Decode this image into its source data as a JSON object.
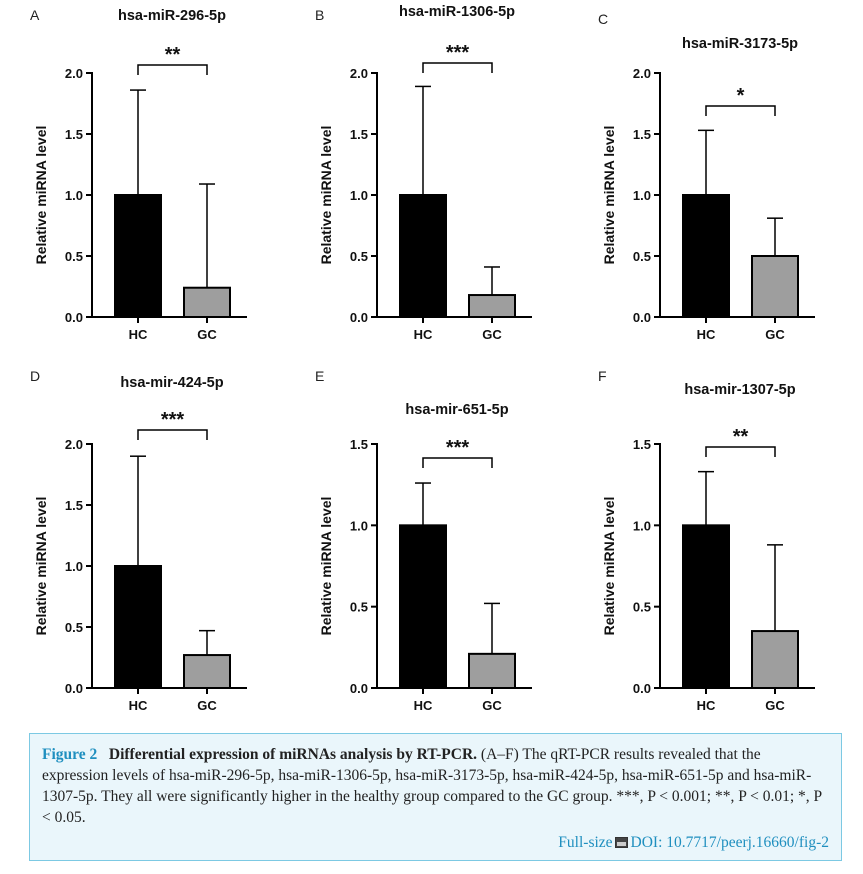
{
  "figure": {
    "caption": {
      "fig_label": "Figure 2",
      "title": "Differential expression of miRNAs analysis by RT-PCR.",
      "body": "(A–F) The qRT-PCR results revealed that the expression levels of hsa-miR-296-5p, hsa-miR-1306-5p, hsa-miR-3173-5p, hsa-miR-424-5p, hsa-miR-651-5p and hsa-miR-1307-5p. They all were significantly higher in the healthy group compared to the GC group. ***, P < 0.001; **, P < 0.01; *, P < 0.05.",
      "fullsize_label": "Full-size",
      "doi": "DOI: 10.7717/peerj.16660/fig-2"
    },
    "colors": {
      "hc_bar": "#000000",
      "gc_bar": "#9e9e9e",
      "caption_accent": "#1f8fbf",
      "caption_bg": "#eaf6fb"
    }
  },
  "chart_data": [
    {
      "panel": "A",
      "type": "bar",
      "title": "hsa-miR-296-5p",
      "ylabel": "Relative miRNA level",
      "categories": [
        "HC",
        "GC"
      ],
      "values": [
        1.0,
        0.24
      ],
      "error_upper": [
        1.86,
        1.09
      ],
      "ylim": [
        0,
        2.0
      ],
      "yticks": [
        "0.0",
        "0.5",
        "1.0",
        "1.5",
        "2.0"
      ],
      "significance": "**"
    },
    {
      "panel": "B",
      "type": "bar",
      "title": "hsa-miR-1306-5p",
      "ylabel": "Relative miRNA level",
      "categories": [
        "HC",
        "GC"
      ],
      "values": [
        1.0,
        0.18
      ],
      "error_upper": [
        1.89,
        0.41
      ],
      "ylim": [
        0,
        2.0
      ],
      "yticks": [
        "0.0",
        "0.5",
        "1.0",
        "1.5",
        "2.0"
      ],
      "significance": "***"
    },
    {
      "panel": "C",
      "type": "bar",
      "title": "hsa-miR-3173-5p",
      "ylabel": "Relative miRNA level",
      "categories": [
        "HC",
        "GC"
      ],
      "values": [
        1.0,
        0.5
      ],
      "error_upper": [
        1.53,
        0.81
      ],
      "ylim": [
        0,
        2.0
      ],
      "yticks": [
        "0.0",
        "0.5",
        "1.0",
        "1.5",
        "2.0"
      ],
      "significance": "*"
    },
    {
      "panel": "D",
      "type": "bar",
      "title": "hsa-mir-424-5p",
      "ylabel": "Relative miRNA level",
      "categories": [
        "HC",
        "GC"
      ],
      "values": [
        1.0,
        0.27
      ],
      "error_upper": [
        1.9,
        0.47
      ],
      "ylim": [
        0,
        2.0
      ],
      "yticks": [
        "0.0",
        "0.5",
        "1.0",
        "1.5",
        "2.0"
      ],
      "significance": "***"
    },
    {
      "panel": "E",
      "type": "bar",
      "title": "hsa-mir-651-5p",
      "ylabel": "Relative miRNA level",
      "categories": [
        "HC",
        "GC"
      ],
      "values": [
        1.0,
        0.21
      ],
      "error_upper": [
        1.26,
        0.52
      ],
      "ylim": [
        0,
        1.5
      ],
      "yticks": [
        "0.0",
        "0.5",
        "1.0",
        "1.5"
      ],
      "significance": "***"
    },
    {
      "panel": "F",
      "type": "bar",
      "title": "hsa-mir-1307-5p",
      "ylabel": "Relative miRNA level",
      "categories": [
        "HC",
        "GC"
      ],
      "values": [
        1.0,
        0.35
      ],
      "error_upper": [
        1.33,
        0.88
      ],
      "ylim": [
        0,
        1.5
      ],
      "yticks": [
        "0.0",
        "0.5",
        "1.0",
        "1.5"
      ],
      "significance": "**"
    }
  ]
}
